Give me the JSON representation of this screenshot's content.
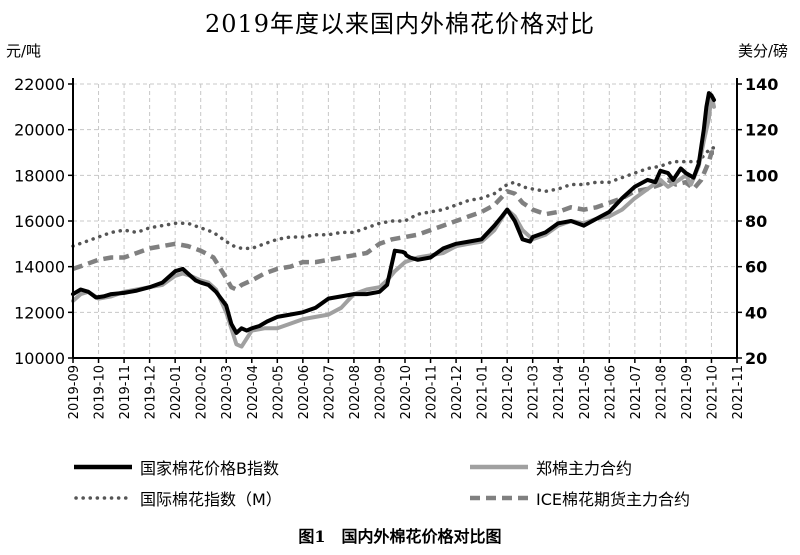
{
  "title": "2019年度以来国内外棉花价格对比",
  "caption": "图1　国内外棉花价格对比图",
  "chart_data": {
    "type": "line",
    "title": "2019年度以来国内外棉花价格对比",
    "ylabel_left": "元/吨",
    "ylabel_right": "美分/磅",
    "x_tick_labels": [
      "2019-09",
      "2019-10",
      "2019-11",
      "2019-12",
      "2020-01",
      "2020-02",
      "2020-03",
      "2020-04",
      "2020-05",
      "2020-06",
      "2020-07",
      "2020-08",
      "2020-09",
      "2020-10",
      "2020-11",
      "2020-12",
      "2021-01",
      "2021-02",
      "2021-03",
      "2021-04",
      "2021-05",
      "2021-06",
      "2021-07",
      "2021-08",
      "2021-09",
      "2021-10",
      "2021-11"
    ],
    "y_left": {
      "min": 10000,
      "max": 22000,
      "step": 2000,
      "ticks": [
        "10000",
        "12000",
        "14000",
        "16000",
        "18000",
        "20000",
        "22000"
      ]
    },
    "y_right": {
      "min": 20,
      "max": 140,
      "step": 20,
      "ticks": [
        "20",
        "40",
        "60",
        "80",
        "100",
        "120",
        "140"
      ]
    },
    "grid": true,
    "legend_position": "bottom",
    "series": [
      {
        "name": "国家棉花价格B指数",
        "axis": "left",
        "style": "solid",
        "color": "#000000",
        "x": [
          0,
          0.3,
          0.6,
          0.9,
          1.2,
          1.5,
          2,
          2.5,
          3,
          3.5,
          4,
          4.3,
          4.5,
          4.8,
          5,
          5.3,
          5.6,
          6,
          6.2,
          6.4,
          6.6,
          6.8,
          7,
          7.3,
          7.6,
          8,
          8.5,
          9,
          9.5,
          10,
          10.5,
          11,
          11.5,
          12,
          12.3,
          12.6,
          12.9,
          13,
          13.05,
          13.2,
          13.5,
          14,
          14.5,
          15,
          15.5,
          16,
          16.5,
          16.8,
          17,
          17.3,
          17.6,
          17.9,
          18,
          18.5,
          19,
          19.5,
          20,
          20.5,
          21,
          21.5,
          22,
          22.5,
          22.8,
          23,
          23.3,
          23.5,
          23.8,
          24,
          24.3,
          24.5,
          24.7,
          24.8,
          24.9,
          25,
          25.1
        ],
        "y": [
          12800,
          13000,
          12900,
          12650,
          12700,
          12800,
          12850,
          12950,
          13100,
          13300,
          13800,
          13900,
          13700,
          13400,
          13300,
          13200,
          12900,
          12300,
          11500,
          11100,
          11300,
          11200,
          11300,
          11400,
          11600,
          11800,
          11900,
          12000,
          12200,
          12600,
          12700,
          12800,
          12800,
          12900,
          13200,
          14700,
          14650,
          14600,
          14500,
          14400,
          14300,
          14400,
          14800,
          15000,
          15100,
          15200,
          15800,
          16200,
          16500,
          16000,
          15200,
          15100,
          15300,
          15500,
          15900,
          16000,
          15800,
          16100,
          16400,
          17000,
          17500,
          17800,
          17700,
          18200,
          18100,
          17800,
          18300,
          18100,
          17900,
          18500,
          20000,
          21000,
          21600,
          21500,
          21300
        ]
      },
      {
        "name": "郑棉主力合约",
        "axis": "left",
        "style": "solid",
        "color": "#a0a0a0",
        "x": [
          0,
          0.3,
          0.6,
          1,
          1.5,
          2,
          2.5,
          3,
          3.5,
          4,
          4.3,
          4.6,
          5,
          5.3,
          5.6,
          6,
          6.2,
          6.4,
          6.6,
          7,
          7.5,
          8,
          8.5,
          9,
          9.5,
          10,
          10.5,
          11,
          11.5,
          12,
          12.3,
          12.6,
          13,
          13.5,
          14,
          14.5,
          15,
          15.5,
          16,
          16.5,
          17,
          17.3,
          17.6,
          18,
          18.5,
          19,
          19.5,
          20,
          20.5,
          21,
          21.5,
          22,
          22.5,
          23,
          23.3,
          23.6,
          24,
          24.2,
          24.5,
          24.7,
          24.9,
          25,
          25.1
        ],
        "y": [
          12500,
          12800,
          12900,
          12600,
          12700,
          12900,
          13000,
          13100,
          13200,
          13600,
          13700,
          13600,
          13400,
          13300,
          13000,
          12000,
          11300,
          10600,
          10500,
          11200,
          11300,
          11300,
          11500,
          11700,
          11800,
          11900,
          12200,
          12800,
          13000,
          13100,
          13400,
          13800,
          14200,
          14400,
          14500,
          14600,
          14900,
          15000,
          15100,
          15600,
          16500,
          16200,
          15600,
          15200,
          15400,
          15800,
          16000,
          15900,
          16100,
          16200,
          16500,
          17000,
          17400,
          17800,
          17500,
          17700,
          18000,
          17600,
          18400,
          19500,
          20500,
          21500,
          21000
        ]
      },
      {
        "name": "国际棉花指数（M）",
        "axis": "right",
        "style": "dotted",
        "color": "#555555",
        "x": [
          0,
          0.5,
          1,
          1.5,
          2,
          2.5,
          3,
          3.5,
          4,
          4.5,
          5,
          5.5,
          6,
          6.3,
          6.6,
          7,
          7.5,
          8,
          8.5,
          9,
          9.5,
          10,
          10.5,
          11,
          11.5,
          12,
          12.5,
          13,
          13.5,
          14,
          14.5,
          15,
          15.5,
          16,
          16.5,
          17,
          17.3,
          17.6,
          18,
          18.5,
          19,
          19.5,
          20,
          20.5,
          21,
          21.5,
          22,
          22.5,
          23,
          23.5,
          24,
          24.5,
          24.8,
          25,
          25.1
        ],
        "y": [
          69,
          71,
          73,
          75,
          76,
          75,
          77,
          78,
          79,
          79,
          77,
          75,
          71,
          69,
          68,
          68,
          70,
          72,
          73,
          73,
          74,
          74,
          75,
          75,
          77,
          79,
          80,
          80,
          83,
          84,
          85,
          87,
          89,
          90,
          92,
          96,
          97,
          95,
          94,
          93,
          94,
          96,
          96,
          97,
          97,
          99,
          101,
          103,
          104,
          106,
          106,
          106,
          110,
          112,
          112
        ]
      },
      {
        "name": "ICE棉花期货主力合约",
        "axis": "right",
        "style": "dashed",
        "color": "#808080",
        "x": [
          0,
          0.5,
          1,
          1.5,
          2,
          2.5,
          3,
          3.5,
          4,
          4.5,
          5,
          5.5,
          6,
          6.2,
          6.4,
          6.6,
          7,
          7.5,
          8,
          8.5,
          9,
          9.5,
          10,
          10.5,
          11,
          11.5,
          12,
          12.5,
          13,
          13.5,
          14,
          14.5,
          15,
          15.5,
          16,
          16.5,
          17,
          17.3,
          17.6,
          18,
          18.5,
          19,
          19.5,
          20,
          20.5,
          21,
          21.5,
          22,
          22.5,
          23,
          23.3,
          23.6,
          24,
          24.3,
          24.6,
          24.9,
          25,
          25.1
        ],
        "y": [
          59,
          61,
          63,
          64,
          64,
          66,
          68,
          69,
          70,
          69,
          67,
          64,
          55,
          51,
          50,
          52,
          54,
          57,
          59,
          60,
          62,
          62,
          63,
          64,
          65,
          66,
          70,
          72,
          73,
          74,
          76,
          78,
          80,
          82,
          84,
          87,
          93,
          92,
          88,
          85,
          83,
          84,
          86,
          85,
          86,
          88,
          90,
          93,
          94,
          96,
          98,
          96,
          97,
          94,
          98,
          106,
          110,
          110
        ]
      }
    ]
  }
}
